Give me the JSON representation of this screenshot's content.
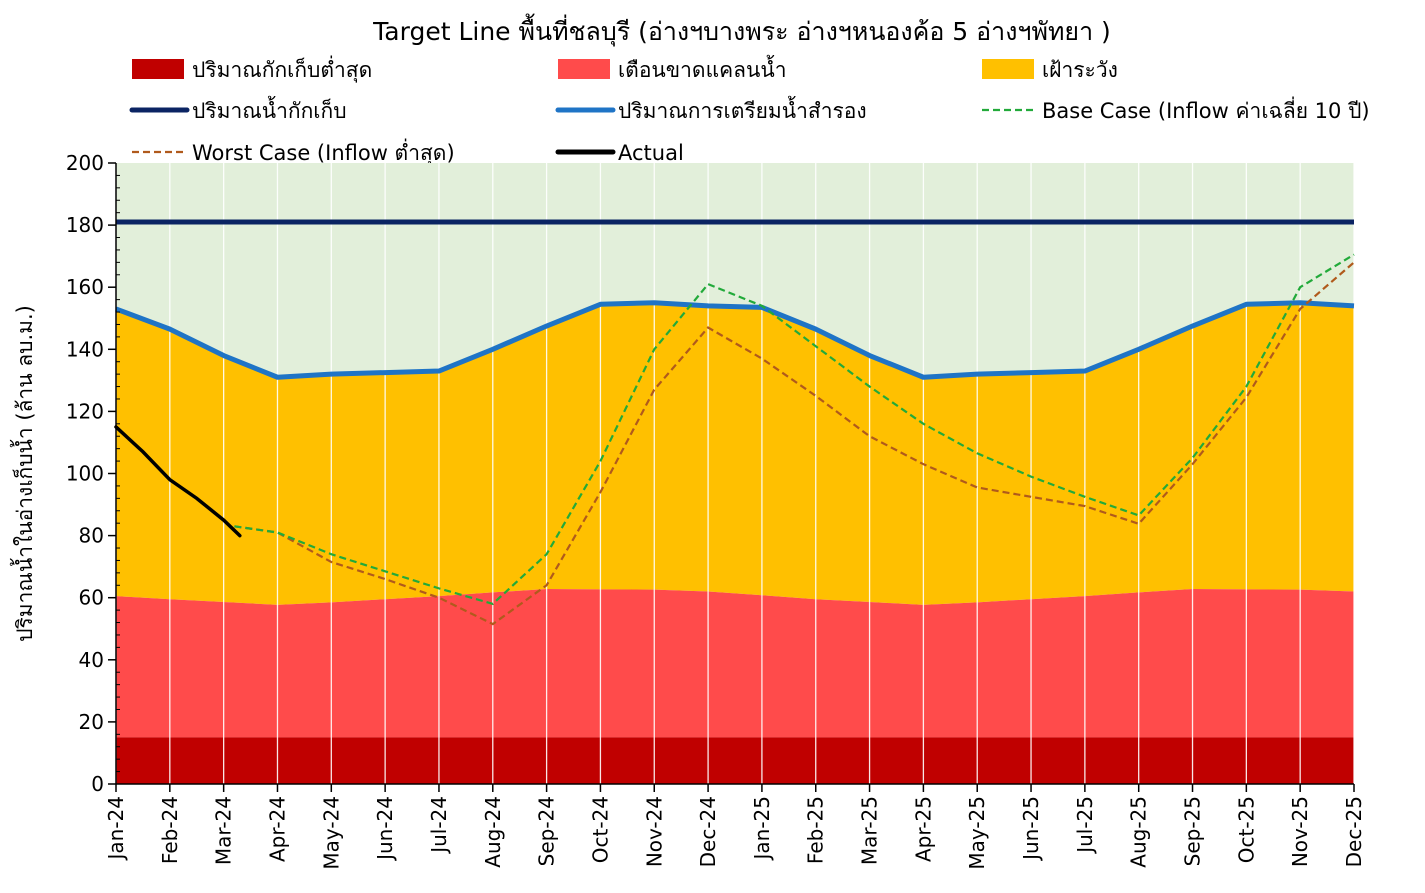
{
  "chart_data": {
    "type": "area",
    "title": "Target Line พื้นที่ชลบุรี (อ่างฯบางพระ อ่างฯหนองค้อ 5 อ่างฯพัทยา )",
    "ylabel": "ปริมาณน้ำในอ่างเก็บน้ำ (ล้าน ลบ.ม.)",
    "xlabel": "",
    "ylim": [
      0,
      200
    ],
    "y_ticks": [
      0,
      20,
      40,
      60,
      80,
      100,
      120,
      140,
      160,
      180,
      200
    ],
    "grid": "vertical",
    "x": [
      "Jan-24",
      "Feb-24",
      "Mar-24",
      "Apr-24",
      "May-24",
      "Jun-24",
      "Jul-24",
      "Aug-24",
      "Sep-24",
      "Oct-24",
      "Nov-24",
      "Dec-24",
      "Jan-25",
      "Feb-25",
      "Mar-25",
      "Apr-25",
      "May-25",
      "Jun-25",
      "Jul-25",
      "Aug-25",
      "Sep-25",
      "Oct-25",
      "Nov-25",
      "Dec-25"
    ],
    "colors": {
      "min_storage": "#c00000",
      "shortage_warning": "#ff4b4b",
      "watch": "#ffc000",
      "above_band": "#e2efda",
      "capacity": "#0b2463",
      "reserve": "#1f74c6",
      "base_case": "#22aa3a",
      "worst_case": "#b05a1c",
      "actual": "#000000"
    },
    "series": [
      {
        "key": "min_storage",
        "name": "ปริมาณกักเก็บต่ำสุด",
        "style": "area",
        "values": [
          15,
          15,
          15,
          15,
          15,
          15,
          15,
          15,
          15,
          15,
          15,
          15,
          15,
          15,
          15,
          15,
          15,
          15,
          15,
          15,
          15,
          15,
          15,
          15
        ]
      },
      {
        "key": "shortage_warning",
        "name": "เตือนขาดแคลนน้ำ",
        "style": "area",
        "values": [
          60.5,
          59.5,
          58.6,
          57.7,
          58.5,
          59.5,
          60.5,
          61.7,
          62.8,
          62.7,
          62.6,
          62.0,
          60.8,
          59.5,
          58.6,
          57.7,
          58.5,
          59.5,
          60.5,
          61.7,
          62.8,
          62.7,
          62.6,
          62.0
        ]
      },
      {
        "key": "watch",
        "name": "เฝ้าระวัง",
        "style": "area",
        "values": [
          153,
          146.5,
          138,
          131,
          132,
          132.5,
          133,
          140,
          147.5,
          154.5,
          155,
          154,
          153.5,
          146.5,
          138,
          131,
          132,
          132.5,
          133,
          140,
          147.5,
          154.5,
          155,
          154
        ]
      },
      {
        "key": "capacity",
        "name": "ปริมาณน้ำกักเก็บ",
        "style": "line",
        "values": [
          181,
          181,
          181,
          181,
          181,
          181,
          181,
          181,
          181,
          181,
          181,
          181,
          181,
          181,
          181,
          181,
          181,
          181,
          181,
          181,
          181,
          181,
          181,
          181
        ]
      },
      {
        "key": "reserve",
        "name": "ปริมาณการเตรียมน้ำสำรอง",
        "style": "line",
        "values": [
          153,
          146.5,
          138,
          131,
          132,
          132.5,
          133,
          140,
          147.5,
          154.5,
          155,
          154,
          153.5,
          146.5,
          138,
          131,
          132,
          132.5,
          133,
          140,
          147.5,
          154.5,
          155,
          154
        ]
      },
      {
        "key": "base_case",
        "name": "Base Case (Inflow ค่าเฉลี่ย 10 ปี)",
        "style": "dashed",
        "points": [
          [
            2.2,
            83
          ],
          [
            3,
            81
          ],
          [
            4,
            74
          ],
          [
            5,
            68.5
          ],
          [
            6,
            63
          ],
          [
            7,
            58
          ],
          [
            8,
            74
          ],
          [
            9,
            104
          ],
          [
            10,
            140
          ],
          [
            11,
            161
          ],
          [
            12,
            154
          ],
          [
            13,
            141
          ],
          [
            14,
            128
          ],
          [
            15,
            116
          ],
          [
            16,
            106.5
          ],
          [
            17,
            99
          ],
          [
            18,
            92.5
          ],
          [
            19,
            86.5
          ],
          [
            20,
            105
          ],
          [
            21,
            128
          ],
          [
            22,
            160
          ],
          [
            23,
            170.5
          ]
        ]
      },
      {
        "key": "worst_case",
        "name": "Worst Case (Inflow ต่ำสุด)",
        "style": "dashed",
        "points": [
          [
            2.2,
            83
          ],
          [
            3,
            81
          ],
          [
            4,
            71.5
          ],
          [
            5,
            66
          ],
          [
            6,
            60
          ],
          [
            7,
            51.5
          ],
          [
            8,
            64
          ],
          [
            9,
            94
          ],
          [
            10,
            127
          ],
          [
            11,
            147
          ],
          [
            12,
            137
          ],
          [
            13,
            125
          ],
          [
            14,
            112
          ],
          [
            15,
            103
          ],
          [
            16,
            95.5
          ],
          [
            17,
            92.5
          ],
          [
            18,
            89.5
          ],
          [
            19,
            83.8
          ],
          [
            20,
            103
          ],
          [
            21,
            124.5
          ],
          [
            22,
            153
          ],
          [
            23,
            168
          ]
        ]
      },
      {
        "key": "actual",
        "name": "Actual",
        "style": "line",
        "points": [
          [
            0,
            115
          ],
          [
            0.5,
            107
          ],
          [
            1,
            98
          ],
          [
            1.5,
            92
          ],
          [
            2,
            85
          ],
          [
            2.3,
            80
          ]
        ]
      }
    ]
  }
}
